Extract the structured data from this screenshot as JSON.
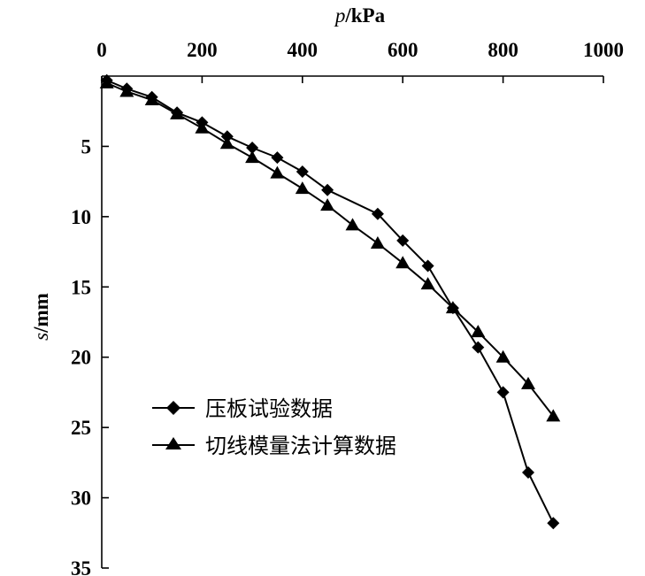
{
  "chart_data": {
    "type": "line",
    "xlabel_var": "p",
    "xlabel_unit": "/kPa",
    "ylabel_var": "s",
    "ylabel_unit": "/mm",
    "x_ticks": [
      "0",
      "200",
      "400",
      "600",
      "800",
      "1000"
    ],
    "y_ticks": [
      "5",
      "10",
      "15",
      "20",
      "25",
      "30",
      "35"
    ],
    "xlim": [
      0,
      1000
    ],
    "ylim": [
      0,
      35
    ],
    "x_axis_position": "top",
    "y_inverted": true,
    "grid": false,
    "legend_position": "lower-left",
    "series": [
      {
        "name": "压板试验数据",
        "marker": "diamond",
        "points": [
          [
            10,
            0.3
          ],
          [
            50,
            0.9
          ],
          [
            100,
            1.5
          ],
          [
            150,
            2.6
          ],
          [
            200,
            3.3
          ],
          [
            250,
            4.3
          ],
          [
            300,
            5.1
          ],
          [
            350,
            5.8
          ],
          [
            400,
            6.8
          ],
          [
            450,
            8.1
          ],
          [
            550,
            9.8
          ],
          [
            600,
            11.7
          ],
          [
            650,
            13.5
          ],
          [
            700,
            16.5
          ],
          [
            750,
            19.3
          ],
          [
            800,
            22.5
          ],
          [
            850,
            28.2
          ],
          [
            900,
            31.8
          ]
        ]
      },
      {
        "name": "切线模量法计算数据",
        "marker": "triangle",
        "points": [
          [
            10,
            0.5
          ],
          [
            50,
            1.1
          ],
          [
            100,
            1.7
          ],
          [
            150,
            2.7
          ],
          [
            200,
            3.7
          ],
          [
            250,
            4.8
          ],
          [
            300,
            5.8
          ],
          [
            350,
            6.9
          ],
          [
            400,
            8.0
          ],
          [
            450,
            9.2
          ],
          [
            500,
            10.6
          ],
          [
            550,
            11.9
          ],
          [
            600,
            13.3
          ],
          [
            650,
            14.8
          ],
          [
            700,
            16.5
          ],
          [
            750,
            18.2
          ],
          [
            800,
            20.0
          ],
          [
            850,
            21.9
          ],
          [
            900,
            24.2
          ]
        ]
      }
    ]
  }
}
